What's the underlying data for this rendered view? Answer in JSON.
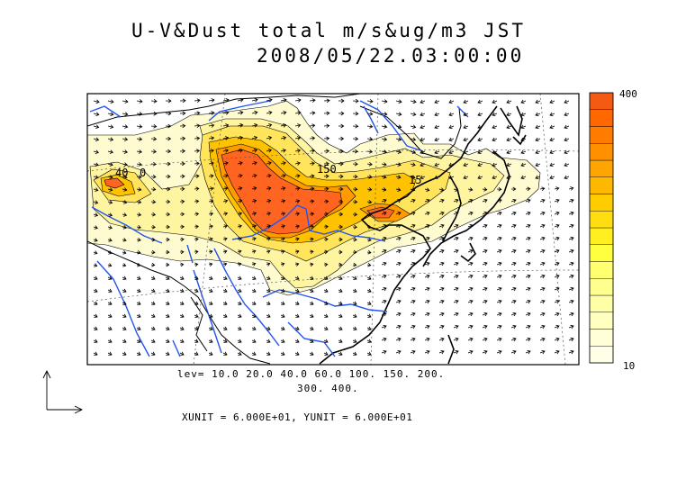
{
  "title": {
    "line1": "U-V&Dust total m/s&ug/m3 JST",
    "line2": "2008/05/22.03:00:00"
  },
  "contour_levels": {
    "line1": "lev= 10.0 20.0 40.0 60.0 100. 150. 200.",
    "line2": "300. 400."
  },
  "vector_units": "XUNIT = 6.000E+01, YUNIT = 6.000E+01",
  "colorbar": {
    "max_label": "400",
    "min_label": "10",
    "colors": [
      "#ffffe8",
      "#ffffd8",
      "#ffffc0",
      "#ffffa8",
      "#ffff90",
      "#ffff70",
      "#ffff40",
      "#ffee20",
      "#ffdd10",
      "#ffcc00",
      "#ffb800",
      "#ffa400",
      "#ff9000",
      "#ff7c00",
      "#ff6800",
      "#f45a14"
    ]
  },
  "map_labels": {
    "label_40": "40",
    "label_0": "0",
    "label_150": "150",
    "label_15": "15"
  },
  "colors": {
    "coast": "#000000",
    "river": "#2255ee",
    "grid": "#555555"
  }
}
